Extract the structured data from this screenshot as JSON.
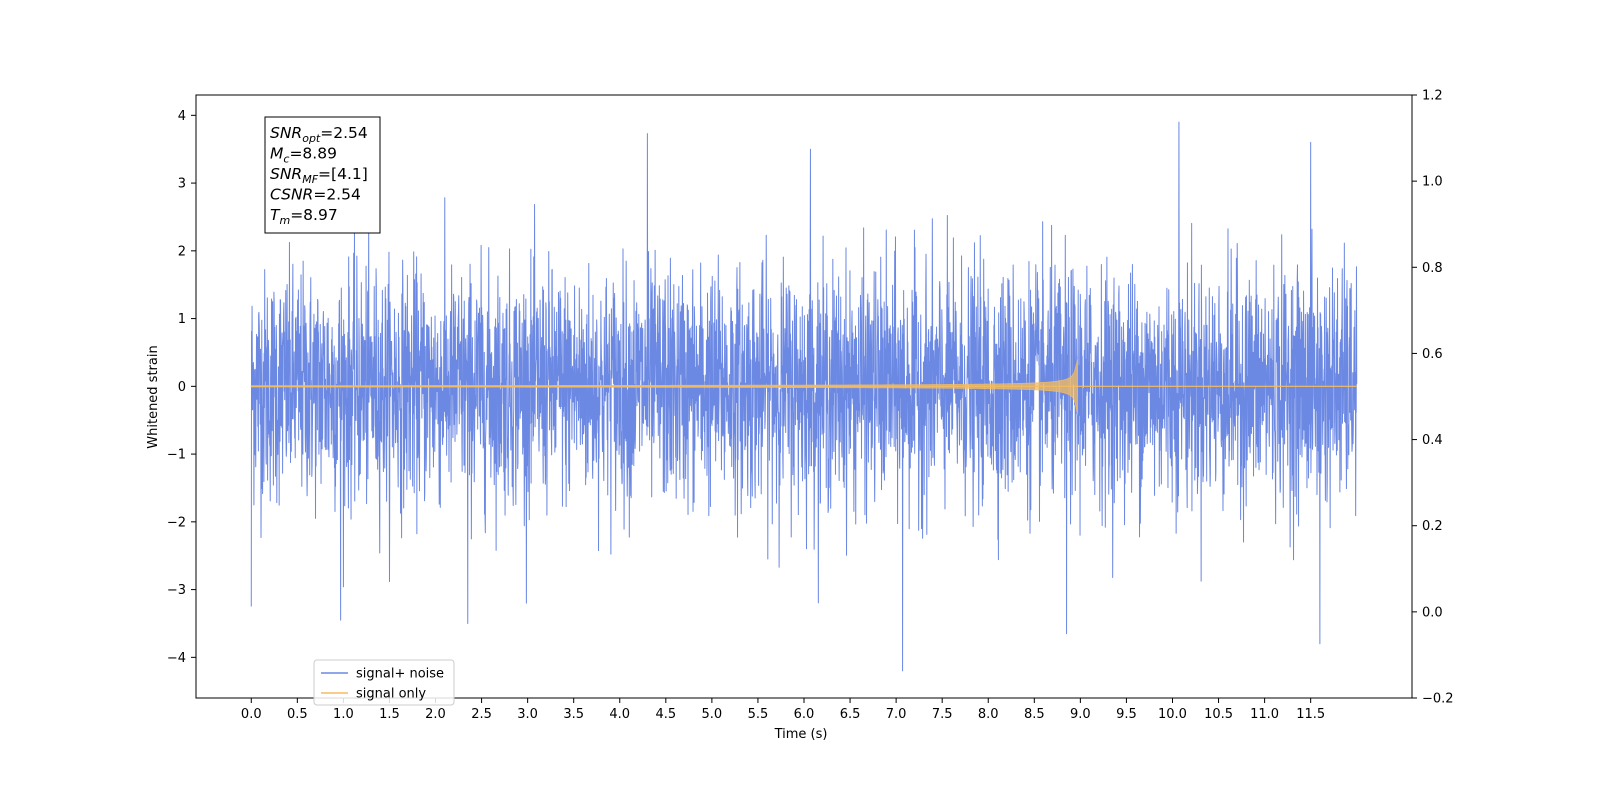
{
  "chart_data": {
    "type": "line",
    "xlabel": "Time (s)",
    "ylabel": "Whitened strain",
    "xlim": [
      -0.6,
      12.6
    ],
    "ylim": [
      -4.6,
      4.3
    ],
    "y2lim": [
      -0.2,
      1.2
    ],
    "x_ticks": [
      0.0,
      0.5,
      1.0,
      1.5,
      2.0,
      2.5,
      3.0,
      3.5,
      4.0,
      4.5,
      5.0,
      5.5,
      6.0,
      6.5,
      7.0,
      7.5,
      8.0,
      8.5,
      9.0,
      9.5,
      10.0,
      10.5,
      11.0,
      11.5
    ],
    "x_tick_labels": [
      "0.0",
      "0.5",
      "1.0",
      "1.5",
      "2.0",
      "2.5",
      "3.0",
      "3.5",
      "4.0",
      "4.5",
      "5.0",
      "5.5",
      "6.0",
      "6.5",
      "7.0",
      "7.5",
      "8.0",
      "8.5",
      "9.0",
      "9.5",
      "10.0",
      "10.5",
      "11.0",
      "11.5"
    ],
    "y_ticks": [
      -4,
      -3,
      -2,
      -1,
      0,
      1,
      2,
      3,
      4
    ],
    "y_tick_labels": [
      "−4",
      "−3",
      "−2",
      "−1",
      "0",
      "1",
      "2",
      "3",
      "4"
    ],
    "y2_ticks": [
      -0.2,
      0.0,
      0.2,
      0.4,
      0.6,
      0.8,
      1.0,
      1.2
    ],
    "y2_tick_labels": [
      "−0.2",
      "0.0",
      "0.2",
      "0.4",
      "0.6",
      "0.8",
      "1.0",
      "1.2"
    ],
    "grid": false,
    "legend_position": "lower-left",
    "series": [
      {
        "name": "signal+ noise",
        "color": "#6b88e3",
        "x_start": 0.0,
        "x_end": 12.0,
        "noise_sigma": 0.85,
        "notable_points": [
          {
            "x": 0.0,
            "y": -3.25
          },
          {
            "x": 0.97,
            "y": -3.45
          },
          {
            "x": 2.35,
            "y": -3.5
          },
          {
            "x": 4.3,
            "y": 3.73
          },
          {
            "x": 6.07,
            "y": 3.5
          },
          {
            "x": 7.07,
            "y": -4.2
          },
          {
            "x": 8.85,
            "y": -3.65
          },
          {
            "x": 10.07,
            "y": 3.9
          },
          {
            "x": 11.5,
            "y": 3.6
          },
          {
            "x": 11.6,
            "y": -3.8
          }
        ]
      },
      {
        "name": "signal only",
        "color": "#f5bc5e",
        "x_start": 0.0,
        "x_end": 12.0,
        "merger_time": 8.97,
        "peak_amplitude": 0.4
      }
    ],
    "annotation": {
      "lines": [
        {
          "sym": "SNR",
          "sub": "opt",
          "value": "=2.54"
        },
        {
          "sym": "M",
          "sub": "c",
          "value": "=8.89"
        },
        {
          "sym": "SNR",
          "sub": "MF",
          "value": "=[4.1]"
        },
        {
          "sym": "CSNR",
          "sub": "",
          "value": "=2.54"
        },
        {
          "sym": "T",
          "sub": "m",
          "value": "=8.97"
        }
      ]
    }
  }
}
